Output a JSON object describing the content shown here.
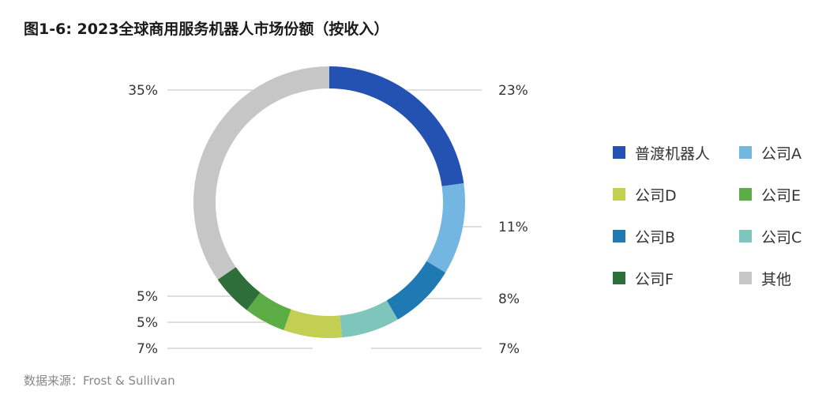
{
  "title": "图1-6: 2023全球商用服务机器人市场份额（按收入）",
  "source": "数据来源：Frost & Sullivan",
  "chart_data": {
    "type": "pie",
    "donut": true,
    "title": "图1-6: 2023全球商用服务机器人市场份额（按收入）",
    "unit": "%",
    "legend_position": "right",
    "slices": [
      {
        "name": "普渡机器人",
        "value": 23,
        "label": "23%",
        "color": "#2452b3"
      },
      {
        "name": "公司A",
        "value": 11,
        "label": "11%",
        "color": "#74b6e2"
      },
      {
        "name": "公司B",
        "value": 8,
        "label": "8%",
        "color": "#1f7ab4"
      },
      {
        "name": "公司C",
        "value": 7,
        "label": "7%",
        "color": "#7ec5bc"
      },
      {
        "name": "公司D",
        "value": 7,
        "label": "7%",
        "color": "#c2cf52"
      },
      {
        "name": "公司E",
        "value": 5,
        "label": "5%",
        "color": "#5cad45"
      },
      {
        "name": "公司F",
        "value": 5,
        "label": "5%",
        "color": "#2d6e3b"
      },
      {
        "name": "其他",
        "value": 35,
        "label": "35%",
        "color": "#c6c6c6"
      }
    ],
    "legend_order": [
      "普渡机器人",
      "公司A",
      "公司D",
      "公司E",
      "公司B",
      "公司C",
      "公司F",
      "其他"
    ]
  }
}
